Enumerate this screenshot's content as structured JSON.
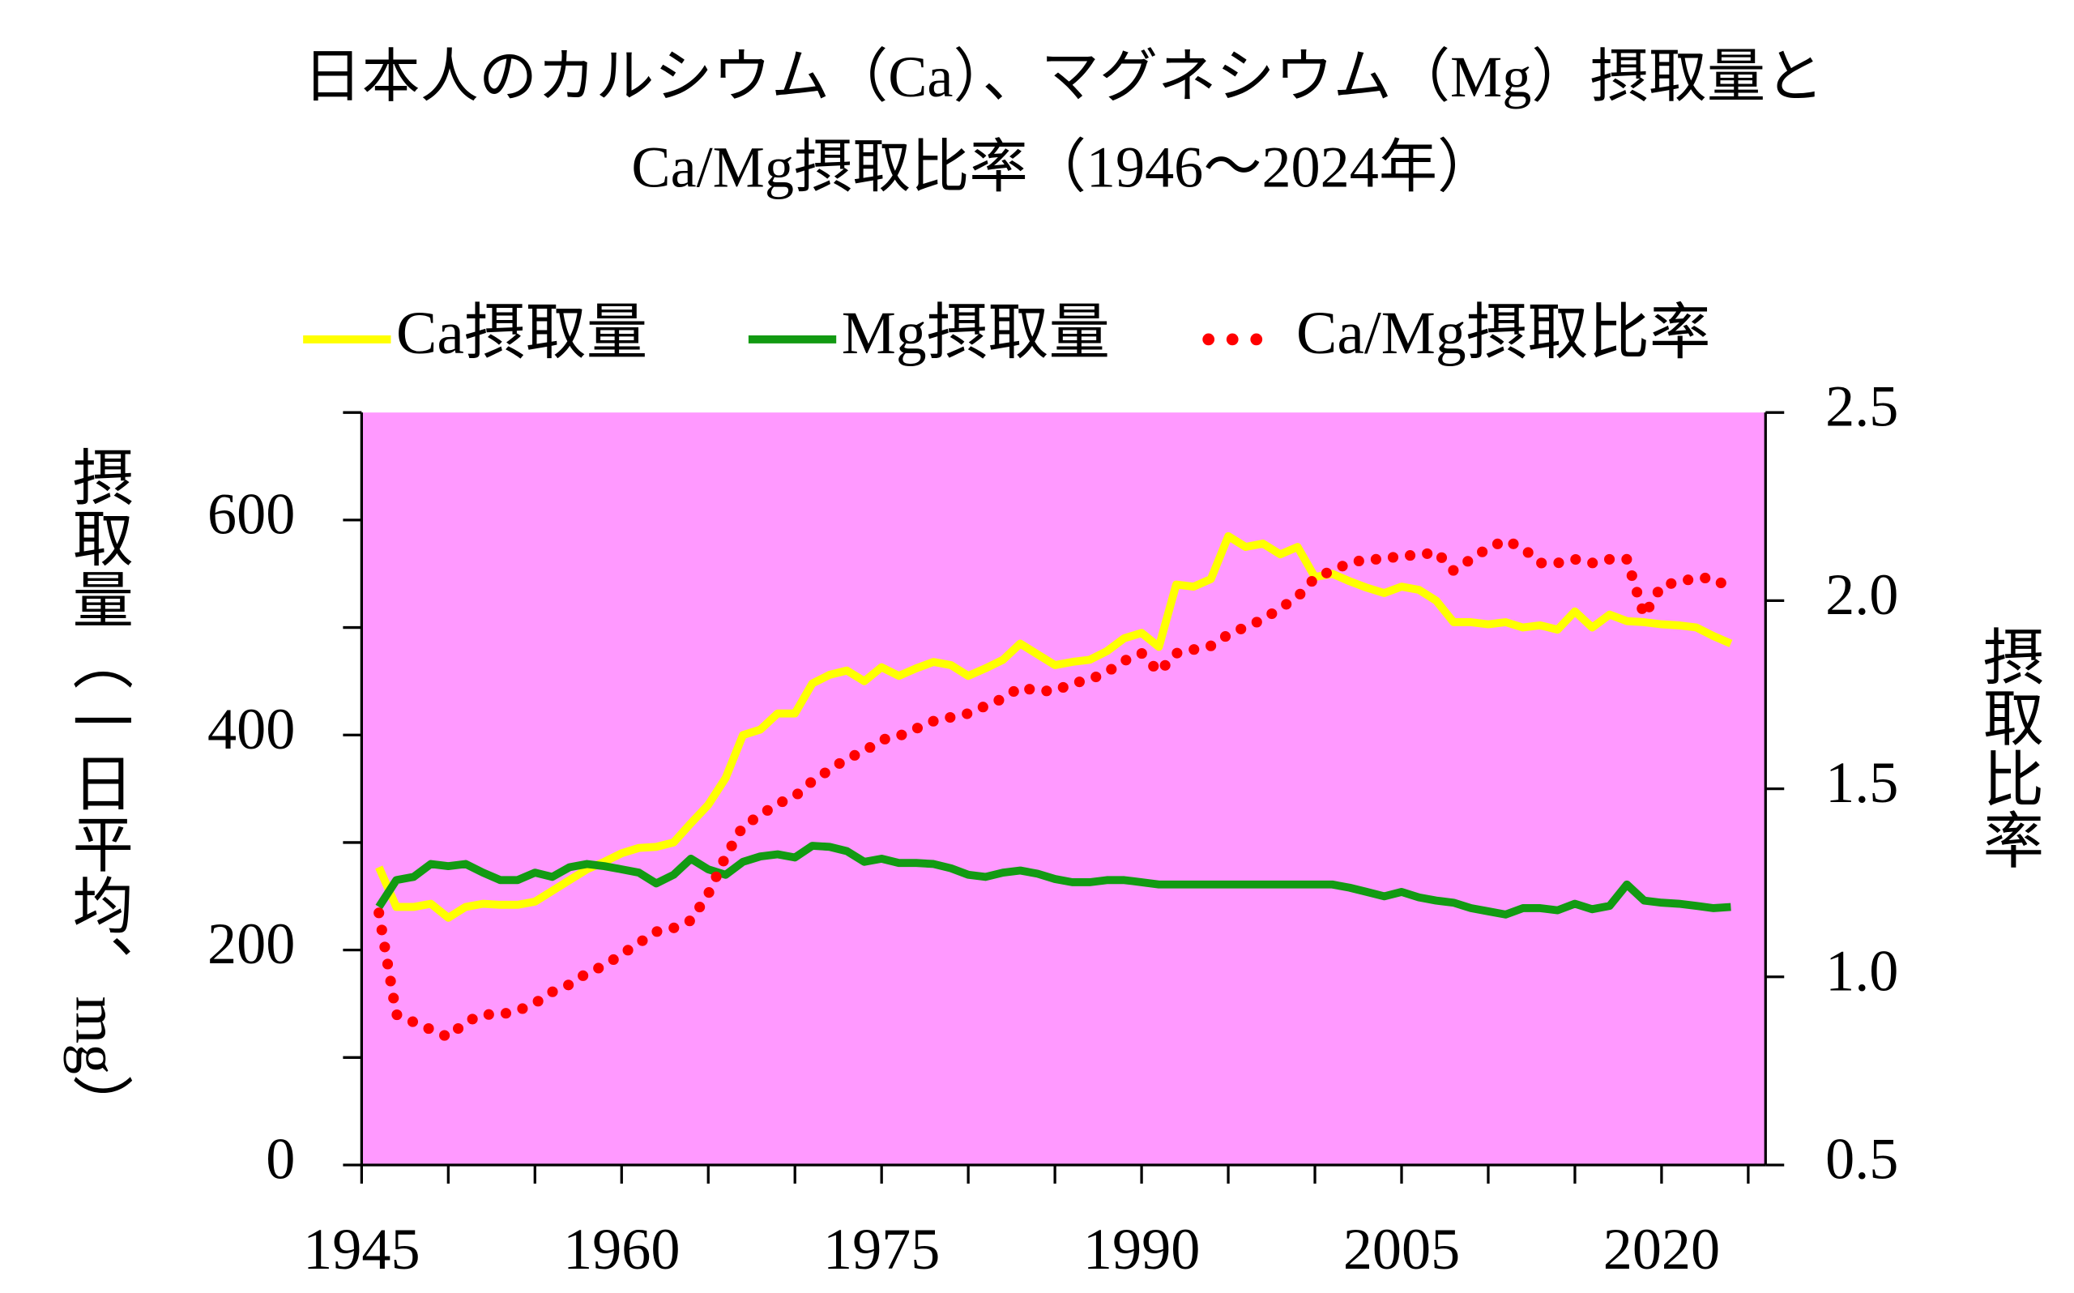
{
  "chart_data": {
    "type": "line",
    "title": [
      "日本人のカルシウム（Ca）、マグネシウム（Mg）摂取量と",
      "Ca/Mg摂取比率（1946～2024年）"
    ],
    "y_label": "摂取量（一日平均、mg）",
    "y2_label": "摂取比率",
    "x": [
      1946,
      1947,
      1948,
      1949,
      1950,
      1951,
      1952,
      1953,
      1954,
      1955,
      1956,
      1957,
      1958,
      1959,
      1960,
      1961,
      1962,
      1963,
      1964,
      1965,
      1966,
      1967,
      1968,
      1969,
      1970,
      1971,
      1972,
      1973,
      1974,
      1975,
      1976,
      1977,
      1978,
      1979,
      1980,
      1981,
      1982,
      1983,
      1984,
      1985,
      1986,
      1987,
      1988,
      1989,
      1990,
      1991,
      1992,
      1993,
      1994,
      1995,
      1996,
      1997,
      1998,
      1999,
      2000,
      2001,
      2002,
      2003,
      2004,
      2005,
      2006,
      2007,
      2008,
      2009,
      2010,
      2011,
      2012,
      2013,
      2014,
      2015,
      2016,
      2017,
      2018,
      2019,
      2020,
      2021,
      2022,
      2023,
      2024
    ],
    "series": [
      {
        "name": "Ca摂取量",
        "color": "#ffff00",
        "style": "solid",
        "values": [
          277,
          240,
          240,
          243,
          230,
          240,
          243,
          242,
          242,
          245,
          255,
          265,
          275,
          282,
          290,
          295,
          296,
          300,
          318,
          335,
          360,
          400,
          405,
          420,
          420,
          448,
          456,
          460,
          450,
          463,
          455,
          462,
          468,
          465,
          455,
          462,
          470,
          485,
          475,
          465,
          468,
          470,
          478,
          490,
          495,
          482,
          540,
          538,
          545,
          585,
          575,
          578,
          568,
          575,
          547,
          550,
          543,
          537,
          532,
          538,
          535,
          525,
          505,
          505,
          503,
          505,
          500,
          502,
          498,
          515,
          500,
          512,
          506,
          505,
          503,
          502,
          500,
          492,
          485
        ]
      },
      {
        "name": "Mg摂取量",
        "color": "#129a12",
        "style": "solid",
        "values": [
          240,
          265,
          268,
          280,
          278,
          280,
          272,
          265,
          265,
          272,
          268,
          277,
          280,
          278,
          275,
          272,
          262,
          270,
          285,
          275,
          270,
          282,
          287,
          289,
          286,
          297,
          296,
          292,
          282,
          285,
          281,
          281,
          280,
          276,
          270,
          268,
          272,
          274,
          271,
          266,
          263,
          263,
          265,
          265,
          263,
          261,
          261,
          261,
          261,
          261,
          261,
          261,
          261,
          261,
          261,
          261,
          258,
          254,
          250,
          254,
          249,
          246,
          244,
          239,
          236,
          233,
          239,
          239,
          237,
          243,
          238,
          241,
          261,
          246,
          244,
          243,
          241,
          239,
          240
        ]
      },
      {
        "name": "Ca/Mg摂取比率",
        "color": "#ff0000",
        "style": "dotted",
        "axis": "y2",
        "values": [
          1.17,
          0.9,
          0.88,
          0.86,
          0.84,
          0.88,
          0.9,
          0.9,
          0.91,
          0.93,
          0.96,
          0.98,
          1.01,
          1.03,
          1.06,
          1.09,
          1.12,
          1.13,
          1.15,
          1.22,
          1.32,
          1.4,
          1.43,
          1.46,
          1.48,
          1.52,
          1.55,
          1.58,
          1.6,
          1.63,
          1.64,
          1.66,
          1.68,
          1.69,
          1.7,
          1.72,
          1.74,
          1.77,
          1.76,
          1.76,
          1.78,
          1.79,
          1.81,
          1.84,
          1.86,
          1.81,
          1.86,
          1.87,
          1.88,
          1.91,
          1.93,
          1.95,
          1.98,
          2.01,
          2.06,
          2.08,
          2.1,
          2.11,
          2.11,
          2.12,
          2.12,
          2.13,
          2.08,
          2.11,
          2.14,
          2.16,
          2.14,
          2.1,
          2.1,
          2.11,
          2.1,
          2.11,
          2.11,
          1.96,
          2.04,
          2.05,
          2.06,
          2.06,
          2.03
        ]
      }
    ],
    "xlim": [
      1945,
      2026
    ],
    "xticks": [
      1945,
      1960,
      1975,
      1990,
      2005,
      2020
    ],
    "ylim": [
      0,
      700
    ],
    "yticks": [
      0,
      200,
      400,
      600
    ],
    "y2lim": [
      0.5,
      2.5
    ],
    "y2ticks": [
      0.5,
      {
        "value": 1,
        "label": "1.0"
      },
      1.5,
      {
        "value": 2,
        "label": "2.0"
      },
      2.5
    ],
    "plot_background": "#ff99ff",
    "legend": "top"
  }
}
